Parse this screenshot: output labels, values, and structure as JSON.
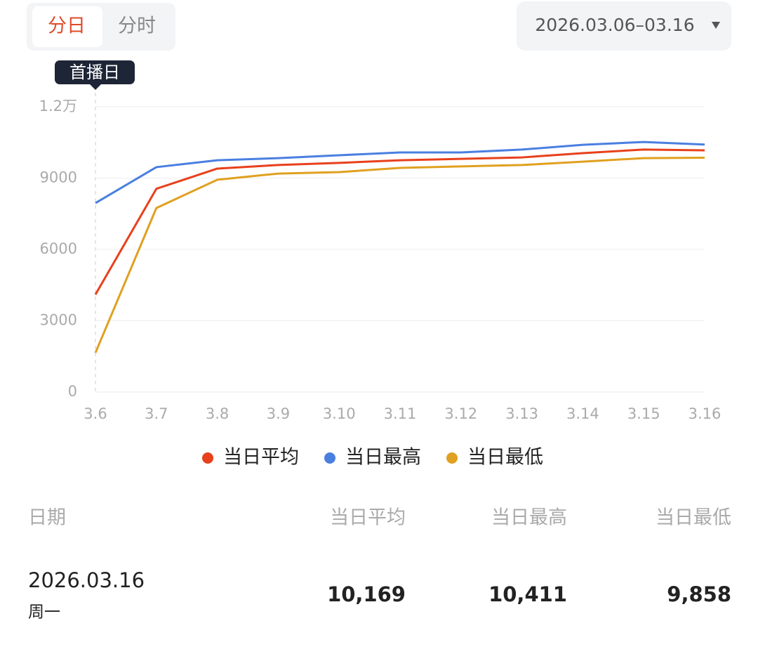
{
  "tabs": [
    "分日",
    "分时"
  ],
  "date_range": "2026.03.06–03.16",
  "chart_data": {
    "type": "line",
    "annotation": "首播日",
    "categories": [
      "3.6",
      "3.7",
      "3.8",
      "3.9",
      "3.10",
      "3.11",
      "3.12",
      "3.13",
      "3.14",
      "3.15",
      "3.16"
    ],
    "series": [
      {
        "name": "当日平均",
        "color": "#e8401c",
        "values": [
          4100,
          8550,
          9400,
          9550,
          9640,
          9750,
          9810,
          9870,
          10050,
          10200,
          10169
        ]
      },
      {
        "name": "当日最高",
        "color": "#4a7fe0",
        "values": [
          7950,
          9460,
          9750,
          9840,
          9960,
          10080,
          10080,
          10200,
          10400,
          10520,
          10411
        ]
      },
      {
        "name": "当日最低",
        "color": "#e0a020",
        "values": [
          1650,
          7740,
          8930,
          9190,
          9250,
          9430,
          9490,
          9550,
          9690,
          9840,
          9858
        ]
      }
    ],
    "ylim": [
      0,
      12000
    ],
    "yticks": [
      0,
      3000,
      6000,
      9000,
      {
        "value": 12000,
        "label": "1.2万"
      }
    ],
    "grid": true
  },
  "table": {
    "headers": [
      "日期",
      "当日平均",
      "当日最高",
      "当日最低"
    ],
    "rows": [
      [
        "2026.03.16",
        "周一",
        "10,169",
        "10,411",
        "9,858"
      ]
    ]
  }
}
